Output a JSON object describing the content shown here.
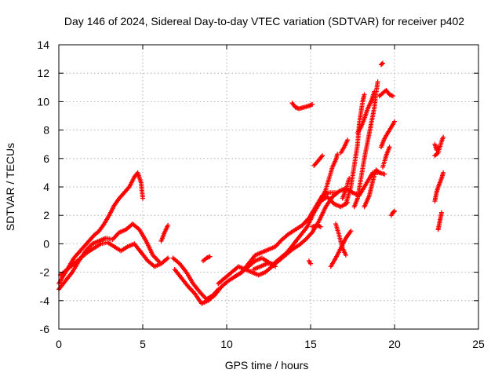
{
  "chart_data": {
    "type": "scatter",
    "title": "Day 146 of 2024, Sidereal Day-to-day VTEC variation (SDTVAR) for receiver p402",
    "xlabel": "GPS time / hours",
    "ylabel": "SDTVAR / TECUs",
    "xlim": [
      0,
      25
    ],
    "ylim": [
      -6,
      14
    ],
    "xticks": [
      "0",
      "5",
      "10",
      "15",
      "20",
      "25"
    ],
    "yticks": [
      "-6",
      "-4",
      "-2",
      "0",
      "2",
      "4",
      "6",
      "8",
      "10",
      "12",
      "14"
    ],
    "grid": true,
    "marker": "+",
    "color": "#ff0000",
    "series": [
      {
        "segments": [
          [
            [
              0.0,
              -2.8
            ],
            [
              0.3,
              -2.2
            ],
            [
              0.6,
              -1.6
            ],
            [
              0.9,
              -1.0
            ],
            [
              1.2,
              -0.6
            ],
            [
              1.5,
              -0.2
            ],
            [
              1.8,
              0.2
            ],
            [
              2.1,
              0.6
            ],
            [
              2.4,
              0.9
            ],
            [
              2.7,
              1.4
            ],
            [
              3.0,
              2.0
            ],
            [
              3.3,
              2.7
            ],
            [
              3.6,
              3.2
            ],
            [
              3.9,
              3.6
            ],
            [
              4.2,
              4.0
            ],
            [
              4.5,
              4.7
            ],
            [
              4.7,
              5.0
            ],
            [
              4.9,
              4.3
            ],
            [
              5.0,
              3.2
            ]
          ],
          [
            [
              0.0,
              -3.2
            ],
            [
              0.4,
              -2.6
            ],
            [
              0.8,
              -2.0
            ],
            [
              1.2,
              -1.2
            ],
            [
              1.6,
              -0.5
            ],
            [
              2.0,
              0.0
            ],
            [
              2.4,
              0.2
            ],
            [
              2.8,
              0.4
            ],
            [
              3.2,
              0.3
            ],
            [
              3.6,
              0.8
            ],
            [
              4.0,
              1.0
            ],
            [
              4.4,
              1.4
            ],
            [
              4.8,
              1.0
            ],
            [
              5.2,
              0.2
            ],
            [
              5.6,
              -0.8
            ],
            [
              6.0,
              -1.3
            ]
          ],
          [
            [
              0.1,
              -2.2
            ],
            [
              0.5,
              -1.8
            ],
            [
              0.9,
              -1.4
            ],
            [
              1.3,
              -1.0
            ],
            [
              1.7,
              -0.6
            ],
            [
              2.1,
              -0.3
            ],
            [
              2.5,
              0.0
            ],
            [
              2.9,
              0.1
            ],
            [
              3.3,
              -0.2
            ],
            [
              3.7,
              -0.5
            ],
            [
              4.1,
              -0.2
            ],
            [
              4.5,
              0.0
            ],
            [
              4.9,
              -0.6
            ],
            [
              5.3,
              -1.2
            ],
            [
              5.7,
              -1.6
            ],
            [
              6.1,
              -1.4
            ],
            [
              6.5,
              -1.0
            ]
          ],
          [
            [
              6.1,
              0.2
            ],
            [
              6.3,
              0.8
            ],
            [
              6.5,
              1.3
            ]
          ],
          [
            [
              6.8,
              -1.0
            ],
            [
              7.2,
              -1.4
            ],
            [
              7.6,
              -2.0
            ],
            [
              8.0,
              -2.8
            ],
            [
              8.4,
              -3.4
            ],
            [
              8.8,
              -3.9
            ],
            [
              9.2,
              -3.6
            ],
            [
              9.5,
              -3.2
            ]
          ],
          [
            [
              6.9,
              -1.8
            ],
            [
              7.3,
              -2.4
            ],
            [
              7.7,
              -3.0
            ],
            [
              8.1,
              -3.5
            ],
            [
              8.5,
              -4.2
            ],
            [
              8.9,
              -4.0
            ],
            [
              9.3,
              -3.6
            ],
            [
              9.7,
              -3.0
            ],
            [
              10.1,
              -2.6
            ],
            [
              10.5,
              -2.3
            ],
            [
              10.9,
              -2.0
            ],
            [
              11.3,
              -1.6
            ],
            [
              11.7,
              -1.2
            ],
            [
              12.1,
              -1.0
            ],
            [
              12.5,
              -1.3
            ],
            [
              12.9,
              -1.6
            ]
          ],
          [
            [
              8.6,
              -1.2
            ],
            [
              8.8,
              -1.0
            ],
            [
              9.0,
              -0.9
            ]
          ],
          [
            [
              9.5,
              -2.8
            ],
            [
              9.9,
              -2.4
            ],
            [
              10.3,
              -2.0
            ],
            [
              10.7,
              -1.6
            ],
            [
              11.1,
              -1.8
            ],
            [
              11.5,
              -2.0
            ],
            [
              11.9,
              -2.2
            ],
            [
              12.3,
              -2.0
            ],
            [
              12.7,
              -1.6
            ],
            [
              13.1,
              -1.2
            ],
            [
              13.5,
              -0.8
            ],
            [
              13.9,
              -0.4
            ],
            [
              14.3,
              -0.1
            ],
            [
              14.7,
              0.3
            ],
            [
              15.1,
              0.8
            ],
            [
              15.5,
              1.6
            ],
            [
              15.9,
              2.6
            ],
            [
              16.3,
              3.3
            ],
            [
              16.7,
              3.7
            ],
            [
              17.1,
              3.9
            ],
            [
              17.5,
              3.6
            ],
            [
              17.9,
              3.4
            ],
            [
              18.3,
              4.2
            ],
            [
              18.7,
              5.0
            ],
            [
              19.1,
              5.0
            ],
            [
              19.4,
              4.9
            ]
          ],
          [
            [
              10.5,
              -2.3
            ],
            [
              10.9,
              -2.0
            ],
            [
              11.3,
              -1.4
            ],
            [
              11.7,
              -0.8
            ],
            [
              12.1,
              -0.6
            ],
            [
              12.5,
              -0.4
            ],
            [
              12.9,
              -0.2
            ],
            [
              13.3,
              0.3
            ],
            [
              13.7,
              0.7
            ],
            [
              14.1,
              1.0
            ],
            [
              14.5,
              1.3
            ],
            [
              14.9,
              1.8
            ],
            [
              15.3,
              2.6
            ],
            [
              15.7,
              3.4
            ],
            [
              16.1,
              3.6
            ],
            [
              16.5,
              3.6
            ]
          ],
          [
            [
              11.6,
              -1.8
            ],
            [
              12.0,
              -1.6
            ],
            [
              12.4,
              -1.4
            ],
            [
              12.8,
              -1.4
            ],
            [
              13.2,
              -1.0
            ],
            [
              13.6,
              -0.6
            ],
            [
              14.0,
              0.0
            ],
            [
              14.4,
              0.6
            ],
            [
              14.8,
              1.2
            ],
            [
              15.2,
              2.2
            ],
            [
              15.6,
              3.0
            ],
            [
              16.0,
              3.3
            ],
            [
              16.4,
              2.8
            ],
            [
              16.8,
              2.6
            ],
            [
              17.2,
              2.9
            ]
          ],
          [
            [
              13.9,
              9.9
            ],
            [
              14.1,
              9.6
            ],
            [
              14.3,
              9.5
            ],
            [
              14.6,
              9.6
            ],
            [
              14.9,
              9.7
            ],
            [
              15.1,
              9.8
            ]
          ],
          [
            [
              14.9,
              -1.2
            ],
            [
              15.0,
              -1.4
            ]
          ],
          [
            [
              15.1,
              1.2
            ],
            [
              15.4,
              1.3
            ],
            [
              15.6,
              1.2
            ]
          ],
          [
            [
              15.2,
              5.5
            ],
            [
              15.5,
              5.9
            ],
            [
              15.7,
              6.2
            ]
          ],
          [
            [
              15.6,
              3.0
            ],
            [
              15.9,
              3.8
            ],
            [
              16.1,
              4.6
            ],
            [
              16.3,
              5.4
            ],
            [
              16.5,
              5.9
            ],
            [
              16.6,
              6.3
            ]
          ],
          [
            [
              16.2,
              -1.6
            ],
            [
              16.5,
              -1.0
            ],
            [
              16.8,
              -0.3
            ],
            [
              17.1,
              0.4
            ],
            [
              17.4,
              0.9
            ]
          ],
          [
            [
              16.5,
              1.4
            ],
            [
              16.7,
              0.6
            ],
            [
              16.9,
              -0.3
            ],
            [
              17.1,
              -0.8
            ]
          ],
          [
            [
              16.8,
              6.4
            ],
            [
              17.0,
              6.8
            ],
            [
              17.2,
              7.3
            ]
          ],
          [
            [
              16.9,
              3.2
            ],
            [
              17.1,
              3.8
            ],
            [
              17.3,
              4.6
            ]
          ],
          [
            [
              17.1,
              2.8
            ],
            [
              17.4,
              4.0
            ],
            [
              17.6,
              5.5
            ],
            [
              17.8,
              7.0
            ],
            [
              17.9,
              8.5
            ],
            [
              18.1,
              10.0
            ],
            [
              18.2,
              10.5
            ]
          ],
          [
            [
              17.6,
              2.6
            ],
            [
              17.8,
              3.2
            ],
            [
              18.0,
              4.6
            ],
            [
              18.2,
              6.0
            ],
            [
              18.4,
              7.2
            ],
            [
              18.6,
              8.4
            ],
            [
              18.8,
              9.6
            ],
            [
              18.9,
              10.6
            ],
            [
              19.0,
              11.4
            ]
          ],
          [
            [
              17.8,
              7.8
            ],
            [
              18.0,
              8.2
            ],
            [
              18.2,
              8.8
            ],
            [
              18.4,
              9.5
            ],
            [
              18.6,
              10.0
            ],
            [
              18.8,
              10.7
            ]
          ],
          [
            [
              18.2,
              2.6
            ],
            [
              18.5,
              3.4
            ],
            [
              18.7,
              4.4
            ],
            [
              18.9,
              5.2
            ],
            [
              19.1,
              5.0
            ]
          ],
          [
            [
              19.1,
              10.4
            ],
            [
              19.3,
              10.6
            ],
            [
              19.5,
              10.8
            ],
            [
              19.7,
              10.5
            ],
            [
              19.9,
              10.4
            ]
          ],
          [
            [
              19.2,
              12.6
            ],
            [
              19.3,
              12.7
            ]
          ],
          [
            [
              19.2,
              6.8
            ],
            [
              19.4,
              7.4
            ],
            [
              19.6,
              7.8
            ],
            [
              19.8,
              8.2
            ],
            [
              20.0,
              8.6
            ]
          ],
          [
            [
              19.3,
              5.4
            ],
            [
              19.5,
              6.2
            ],
            [
              19.7,
              6.8
            ]
          ],
          [
            [
              19.8,
              2.0
            ],
            [
              19.9,
              2.2
            ],
            [
              20.0,
              2.3
            ]
          ],
          [
            [
              22.4,
              7.0
            ],
            [
              22.5,
              6.6
            ],
            [
              22.6,
              6.8
            ]
          ],
          [
            [
              22.4,
              6.2
            ],
            [
              22.6,
              6.4
            ],
            [
              22.8,
              7.2
            ],
            [
              22.9,
              7.5
            ]
          ],
          [
            [
              22.4,
              3.0
            ],
            [
              22.5,
              3.6
            ],
            [
              22.6,
              4.0
            ],
            [
              22.8,
              4.6
            ],
            [
              22.9,
              5.0
            ]
          ],
          [
            [
              22.6,
              1.0
            ],
            [
              22.7,
              1.6
            ],
            [
              22.8,
              2.2
            ]
          ]
        ]
      }
    ]
  }
}
